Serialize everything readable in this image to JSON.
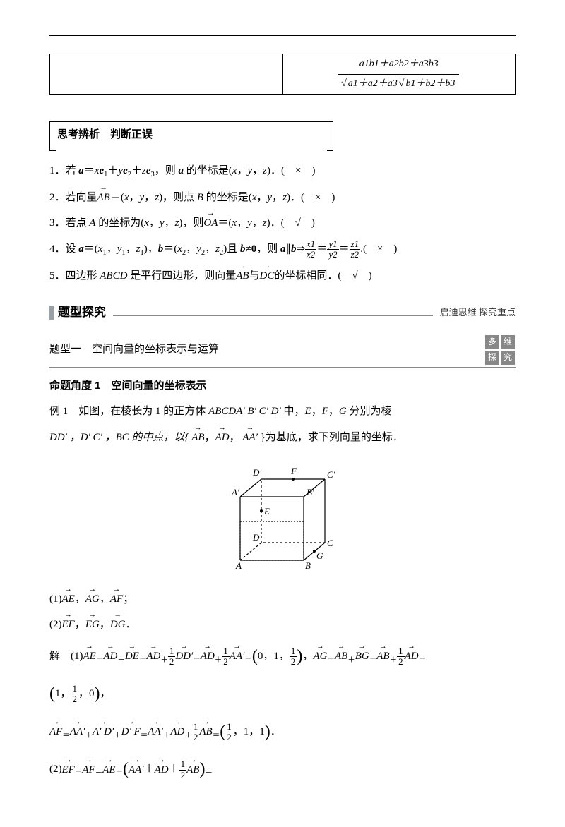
{
  "formula": {
    "numerator": "a1b1＋a2b2＋a3b3",
    "den_left": "a1＋a2＋a3",
    "den_right": "b1＋b2＋b3"
  },
  "thinking": {
    "title": "思考辨析　判断正误",
    "items": [
      {
        "n": "1．",
        "body": "若 <span class='it bold'>a</span>＝<span class='it'>x</span><span class='it bold'>e</span><sub>1</sub>＋<span class='it'>y</span><span class='it bold'>e</span><sub>2</sub>＋<span class='it'>z</span><span class='it bold'>e</span><sub>3</sub>，则 <span class='it bold'>a</span> 的坐标是(<span class='it'>x</span>，<span class='it'>y</span>，<span class='it'>z</span>)．(　×　)"
      },
      {
        "n": "2．",
        "body": "若向量<span class='vec'>AB</span>＝(<span class='it'>x</span>，<span class='it'>y</span>，<span class='it'>z</span>)，则点 <span class='it'>B</span> 的坐标是(<span class='it'>x</span>，<span class='it'>y</span>，<span class='it'>z</span>)．(　×　)"
      },
      {
        "n": "3．",
        "body": "若点 <span class='it'>A</span> 的坐标为(<span class='it'>x</span>，<span class='it'>y</span>，<span class='it'>z</span>)，则<span class='vec'>OA</span>＝(<span class='it'>x</span>，<span class='it'>y</span>，<span class='it'>z</span>)．(　√　)"
      },
      {
        "n": "4．",
        "body": "设 <span class='it bold'>a</span>＝(<span class='it'>x</span><sub>1</sub>，<span class='it'>y</span><sub>1</sub>，<span class='it'>z</span><sub>1</sub>)，<span class='it bold'>b</span>＝(<span class='it'>x</span><sub>2</sub>，<span class='it'>y</span><sub>2</sub>，<span class='it'>z</span><sub>2</sub>)且 <span class='it bold'>b</span>≠<span class='bold'>0</span>，则 <span class='it bold'>a</span>∥<span class='it bold'>b</span>⇒<span class='sfrac'><span class='num it'>x1</span><span class='den it'>x2</span></span>＝<span class='sfrac'><span class='num it'>y1</span><span class='den it'>y2</span></span>＝<span class='sfrac'><span class='num it'>z1</span><span class='den it'>z2</span></span>.(　×　)"
      },
      {
        "n": "5．",
        "body": "四边形 <span class='it'>ABCD</span> 是平行四边形，则向量<span class='vec'>AB</span>与<span class='vec'>DC</span>的坐标相同．(　√　)"
      }
    ]
  },
  "explore": {
    "bar_title": "题型探究",
    "bar_right": "启迪思维  探究重点",
    "topic": "题型一　空间向量的坐标表示与运算",
    "tags": [
      "多",
      "维",
      "探",
      "究"
    ],
    "angle": "命题角度 1　空间向量的坐标表示",
    "example_label": "例 1",
    "example_body": "如图，在棱长为 1 的正方体 <span class='it'>ABCDA′ B′ C′ D′</span> 中，<span class='it'>E</span>，<span class='it'>F</span>，<span class='it'>G</span> 分别为棱",
    "example_line2_pre": "DD′ ，D′ C′ ，BC 的中点，以{",
    "example_line2_post": "}为基底，求下列向量的坐标．"
  },
  "cube": {
    "labels": [
      "A",
      "B",
      "C",
      "D",
      "A′",
      "B′",
      "C′",
      "D′",
      "E",
      "F",
      "G"
    ]
  },
  "questions": {
    "q1_pre": "(1)",
    "q2_pre": "(2)"
  },
  "solution": {
    "label": "解"
  }
}
